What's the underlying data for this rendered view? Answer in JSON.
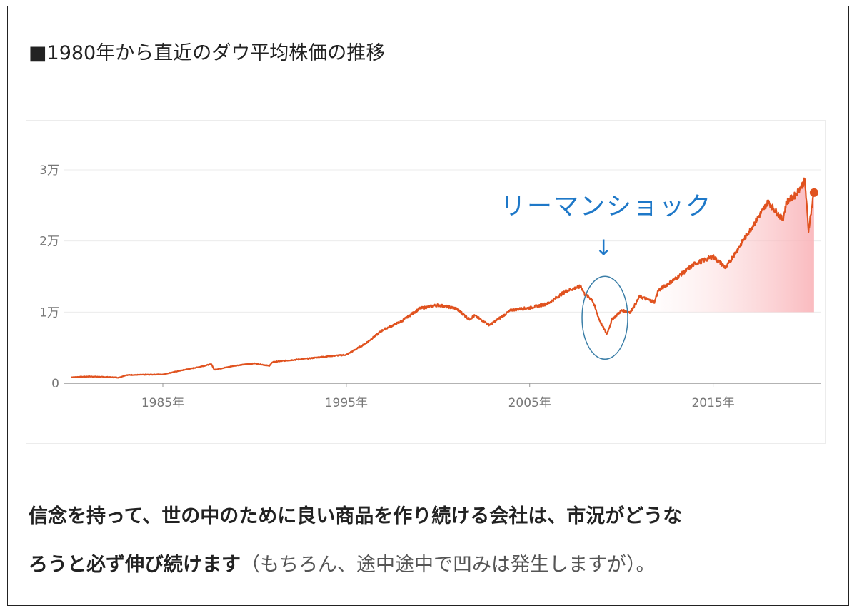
{
  "heading": "■1980年から直近のダウ平均株価の推移",
  "chart_data": {
    "type": "line",
    "y_tick_labels": [
      "0",
      "1万",
      "2万",
      "3万"
    ],
    "y_ticks": [
      0,
      10000,
      20000,
      30000
    ],
    "x_tick_labels": [
      "1985年",
      "1995年",
      "2005年",
      "2015年"
    ],
    "x_ticks": [
      1985,
      1995,
      2005,
      2015
    ],
    "xlim": [
      1979.9,
      2020.7
    ],
    "ylim": [
      0,
      30000
    ],
    "series": [
      {
        "color": "#e0521f",
        "x": [
          1980.0,
          1981.0,
          1982.0,
          1982.6,
          1983.0,
          1984.0,
          1985.0,
          1986.0,
          1987.0,
          1987.65,
          1987.8,
          1988.0,
          1989.0,
          1990.0,
          1990.8,
          1991.0,
          1992.0,
          1993.0,
          1994.0,
          1995.0,
          1996.0,
          1997.0,
          1998.0,
          1999.0,
          2000.0,
          2001.0,
          2001.7,
          2002.0,
          2002.8,
          2003.0,
          2004.0,
          2005.0,
          2006.0,
          2007.0,
          2007.8,
          2008.0,
          2008.4,
          2008.8,
          2009.2,
          2009.5,
          2010.0,
          2010.5,
          2011.0,
          2011.8,
          2012.0,
          2013.0,
          2014.0,
          2015.0,
          2015.7,
          2016.0,
          2017.0,
          2018.0,
          2018.8,
          2019.0,
          2019.5,
          2020.0,
          2020.2,
          2020.5
        ],
        "y": [
          850,
          950,
          870,
          800,
          1150,
          1200,
          1250,
          1800,
          2300,
          2700,
          1900,
          2000,
          2500,
          2800,
          2450,
          3000,
          3250,
          3500,
          3800,
          4000,
          5500,
          7500,
          8700,
          10500,
          11000,
          10500,
          9000,
          9500,
          8200,
          8500,
          10300,
          10600,
          11200,
          13000,
          13600,
          12500,
          11800,
          8900,
          6900,
          9000,
          10200,
          10000,
          12200,
          11400,
          13000,
          14800,
          16800,
          17800,
          16200,
          17500,
          21500,
          25500,
          23000,
          25500,
          26500,
          28500,
          21500,
          27000
        ]
      }
    ],
    "endpoint_marker": {
      "x": 2020.5,
      "y": 26800,
      "color": "#e0521f"
    },
    "annotation": {
      "label": "リーマンショック",
      "arrow": "↓",
      "color": "#1e78c8",
      "circle_center": {
        "x": 2009.1,
        "y": 9200
      }
    },
    "fill": "gradient under recent segment (2011–2020), light pink",
    "grid": "horizontal only, light gray"
  },
  "body": {
    "bold_text": "信念を持って、世の中のために良い商品を作り続ける会社は、市況がどうな",
    "bold_text_2": "ろうと必ず伸び続けます",
    "normal_text": "（もちろん、途中途中で凹みは発生しますが）。"
  }
}
